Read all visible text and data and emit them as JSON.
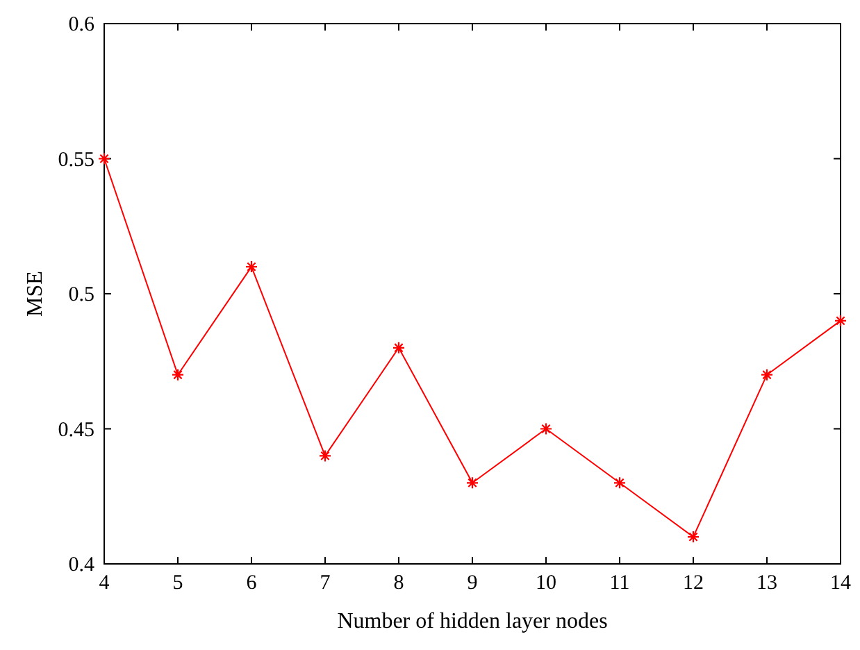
{
  "chart_data": {
    "type": "line",
    "xlabel": "Number of hidden layer nodes",
    "ylabel": "MSE",
    "x": [
      4,
      5,
      6,
      7,
      8,
      9,
      10,
      11,
      12,
      13,
      14
    ],
    "series": [
      {
        "color": "#ff0000",
        "values": [
          0.55,
          0.47,
          0.51,
          0.44,
          0.48,
          0.43,
          0.45,
          0.43,
          0.41,
          0.47,
          0.49
        ]
      }
    ],
    "xlim": [
      4,
      14
    ],
    "xticks": [
      4,
      5,
      6,
      7,
      8,
      9,
      10,
      11,
      12,
      13,
      14
    ],
    "ylim": [
      0.4,
      0.6
    ],
    "yticks": [
      0.4,
      0.45,
      0.5,
      0.55,
      0.6
    ],
    "grid": false,
    "marker": "cross",
    "line_style": "solid"
  }
}
